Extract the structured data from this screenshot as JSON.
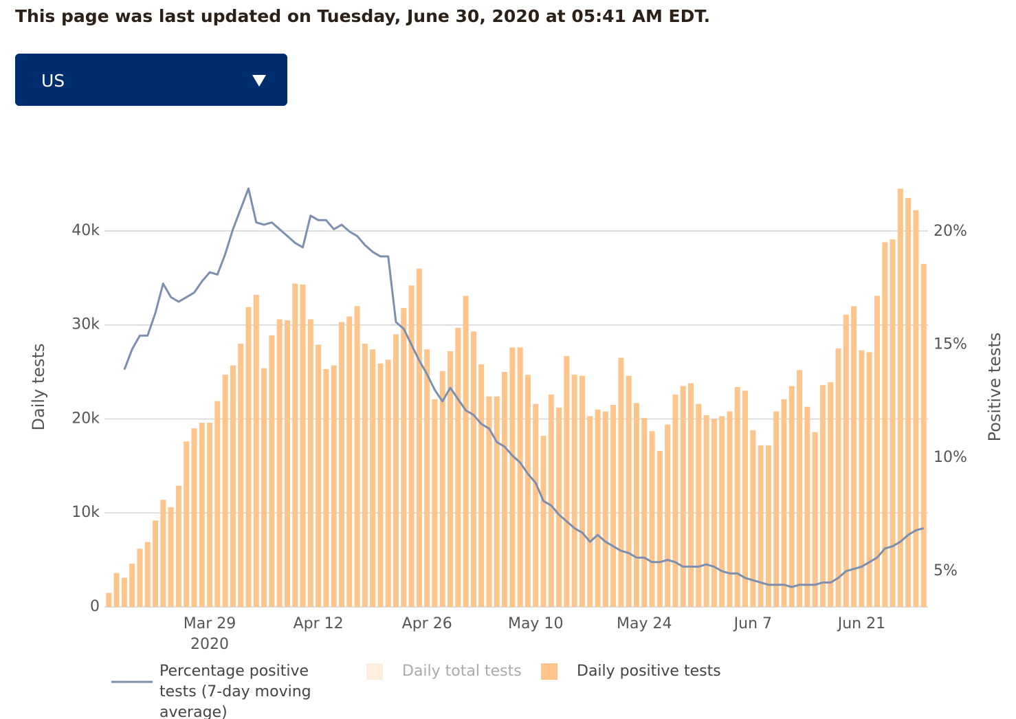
{
  "header": {
    "title": "This page was last updated on Tuesday, June 30, 2020 at 05:41 AM EDT."
  },
  "selector": {
    "value": "US"
  },
  "chart_data": {
    "type": "bar",
    "x": [
      "2020-03-16",
      "2020-03-17",
      "2020-03-18",
      "2020-03-19",
      "2020-03-20",
      "2020-03-21",
      "2020-03-22",
      "2020-03-23",
      "2020-03-24",
      "2020-03-25",
      "2020-03-26",
      "2020-03-27",
      "2020-03-28",
      "2020-03-29",
      "2020-03-30",
      "2020-03-31",
      "2020-04-01",
      "2020-04-02",
      "2020-04-03",
      "2020-04-04",
      "2020-04-05",
      "2020-04-06",
      "2020-04-07",
      "2020-04-08",
      "2020-04-09",
      "2020-04-10",
      "2020-04-11",
      "2020-04-12",
      "2020-04-13",
      "2020-04-14",
      "2020-04-15",
      "2020-04-16",
      "2020-04-17",
      "2020-04-18",
      "2020-04-19",
      "2020-04-20",
      "2020-04-21",
      "2020-04-22",
      "2020-04-23",
      "2020-04-24",
      "2020-04-25",
      "2020-04-26",
      "2020-04-27",
      "2020-04-28",
      "2020-04-29",
      "2020-04-30",
      "2020-05-01",
      "2020-05-02",
      "2020-05-03",
      "2020-05-04",
      "2020-05-05",
      "2020-05-06",
      "2020-05-07",
      "2020-05-08",
      "2020-05-09",
      "2020-05-10",
      "2020-05-11",
      "2020-05-12",
      "2020-05-13",
      "2020-05-14",
      "2020-05-15",
      "2020-05-16",
      "2020-05-17",
      "2020-05-18",
      "2020-05-19",
      "2020-05-20",
      "2020-05-21",
      "2020-05-22",
      "2020-05-23",
      "2020-05-24",
      "2020-05-25",
      "2020-05-26",
      "2020-05-27",
      "2020-05-28",
      "2020-05-29",
      "2020-05-30",
      "2020-05-31",
      "2020-06-01",
      "2020-06-02",
      "2020-06-03",
      "2020-06-04",
      "2020-06-05",
      "2020-06-06",
      "2020-06-07",
      "2020-06-08",
      "2020-06-09",
      "2020-06-10",
      "2020-06-11",
      "2020-06-12",
      "2020-06-13",
      "2020-06-14",
      "2020-06-15",
      "2020-06-16",
      "2020-06-17",
      "2020-06-18",
      "2020-06-19",
      "2020-06-20",
      "2020-06-21",
      "2020-06-22",
      "2020-06-23",
      "2020-06-24",
      "2020-06-25",
      "2020-06-26",
      "2020-06-27",
      "2020-06-28",
      "2020-06-29"
    ],
    "series": [
      {
        "name": "Percentage positive tests (7-day moving average)",
        "type": "line",
        "axis": "y2",
        "color": "#7d8fae",
        "values": [
          null,
          null,
          13.9,
          14.8,
          15.4,
          15.4,
          16.4,
          17.7,
          17.1,
          16.9,
          17.1,
          17.3,
          17.8,
          18.2,
          18.1,
          19.0,
          20.1,
          21.0,
          21.9,
          20.4,
          20.3,
          20.4,
          20.1,
          19.8,
          19.5,
          19.3,
          20.7,
          20.5,
          20.5,
          20.1,
          20.3,
          20.0,
          19.8,
          19.4,
          19.1,
          18.9,
          18.9,
          16.0,
          15.7,
          15.0,
          14.3,
          13.7,
          13.0,
          12.5,
          13.1,
          12.6,
          12.1,
          11.9,
          11.5,
          11.3,
          10.7,
          10.5,
          10.1,
          9.8,
          9.3,
          8.9,
          8.1,
          7.9,
          7.5,
          7.2,
          6.9,
          6.7,
          6.3,
          6.6,
          6.3,
          6.1,
          5.9,
          5.8,
          5.6,
          5.6,
          5.4,
          5.4,
          5.5,
          5.4,
          5.2,
          5.2,
          5.2,
          5.3,
          5.2,
          5.0,
          4.9,
          4.9,
          4.7,
          4.6,
          4.5,
          4.4,
          4.4,
          4.4,
          4.3,
          4.4,
          4.4,
          4.4,
          4.5,
          4.5,
          4.7,
          5.0,
          5.1,
          5.2,
          5.4,
          5.6,
          6.0,
          6.1,
          6.3,
          6.6,
          6.8,
          6.9
        ]
      },
      {
        "name": "Daily total tests",
        "type": "bar",
        "hidden": true,
        "color": "#fdeee0"
      },
      {
        "name": "Daily positive tests",
        "type": "bar",
        "color": "#fdc48c",
        "values": [
          1500,
          3600,
          3100,
          4600,
          6200,
          6900,
          9200,
          11400,
          10600,
          12900,
          17600,
          19000,
          19600,
          19600,
          21900,
          24700,
          25700,
          28000,
          31900,
          33200,
          25400,
          28900,
          30600,
          30500,
          34400,
          34300,
          30600,
          27900,
          25300,
          25700,
          30300,
          30900,
          32000,
          28000,
          27400,
          25900,
          26300,
          29000,
          31800,
          34200,
          36000,
          27400,
          22100,
          25100,
          27200,
          29700,
          33100,
          29300,
          25800,
          22400,
          22400,
          25000,
          27600,
          27600,
          24700,
          21600,
          18200,
          22600,
          21200,
          26700,
          24700,
          24600,
          20300,
          21000,
          20800,
          21500,
          26500,
          24600,
          21700,
          20100,
          18700,
          16600,
          19400,
          22600,
          23500,
          23800,
          21600,
          20400,
          20000,
          20300,
          20800,
          23400,
          23000,
          18800,
          17200,
          17200,
          20800,
          22100,
          23500,
          25200,
          21300,
          18600,
          23600,
          23900,
          27500,
          31100,
          32000,
          27300,
          27100,
          33100,
          38800,
          39100,
          44500,
          43500,
          42200,
          36500
        ]
      }
    ],
    "xlim": [
      "2020-03-15",
      "2020-06-30"
    ],
    "xticks": [
      {
        "value": "2020-03-29",
        "label": "Mar 29"
      },
      {
        "value": "2020-04-12",
        "label": "Apr 12"
      },
      {
        "value": "2020-04-26",
        "label": "Apr 26"
      },
      {
        "value": "2020-05-10",
        "label": "May 10"
      },
      {
        "value": "2020-05-24",
        "label": "May 24"
      },
      {
        "value": "2020-06-07",
        "label": "Jun 7"
      },
      {
        "value": "2020-06-21",
        "label": "Jun 21"
      }
    ],
    "x_year_label": "2020",
    "ylim": [
      0,
      45000
    ],
    "yticks": [
      0,
      {
        "value": 10000,
        "label": "10k"
      },
      {
        "value": 20000,
        "label": "20k"
      },
      {
        "value": 30000,
        "label": "30k"
      },
      {
        "value": 40000,
        "label": "40k"
      }
    ],
    "y2lim": [
      3.42,
      22.1
    ],
    "y2ticks": [
      {
        "value": 5,
        "label": "5%"
      },
      {
        "value": 10,
        "label": "10%"
      },
      {
        "value": 15,
        "label": "15%"
      },
      {
        "value": 20,
        "label": "20%"
      }
    ],
    "ylabel": "Daily tests",
    "y2label": "Positive tests",
    "grid": true
  }
}
